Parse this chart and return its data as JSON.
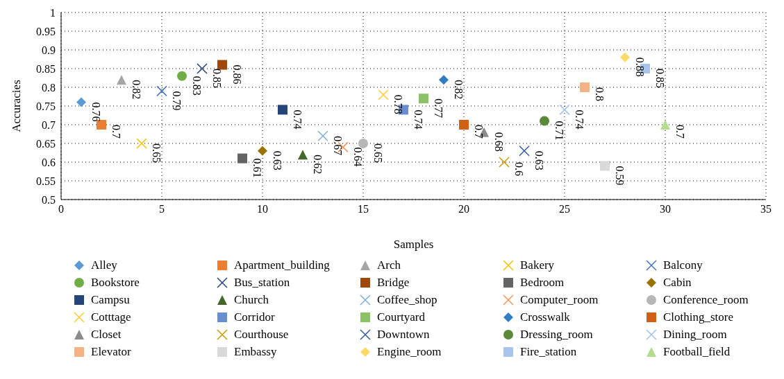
{
  "chart_data": {
    "type": "scatter",
    "xlabel": "Samples",
    "ylabel": "Accuracies",
    "xlim": [
      0,
      35
    ],
    "xticks": [
      0,
      5,
      10,
      15,
      20,
      25,
      30,
      35
    ],
    "ylim": [
      0.5,
      1
    ],
    "yticks": [
      0.5,
      0.55,
      0.6,
      0.65,
      0.7,
      0.75,
      0.8,
      0.85,
      0.9,
      0.95,
      1
    ],
    "grid": true,
    "legend": "bottom",
    "data_labels": true,
    "series": [
      {
        "name": "Alley",
        "color": "#5b9bd5",
        "marker": "diamond",
        "x": [
          1
        ],
        "values": [
          0.76
        ]
      },
      {
        "name": "Apartment_building",
        "color": "#ed7d31",
        "marker": "square",
        "x": [
          2
        ],
        "values": [
          0.7
        ]
      },
      {
        "name": "Arch",
        "color": "#a5a5a5",
        "marker": "triangle",
        "x": [
          3
        ],
        "values": [
          0.82
        ]
      },
      {
        "name": "Bakery",
        "color": "#ffc000",
        "marker": "cross",
        "x": [
          4
        ],
        "values": [
          0.65
        ]
      },
      {
        "name": "Balcony",
        "color": "#4472c4",
        "marker": "cross",
        "x": [
          5
        ],
        "values": [
          0.79
        ]
      },
      {
        "name": "Bookstore",
        "color": "#70ad47",
        "marker": "circle",
        "x": [
          6
        ],
        "values": [
          0.83
        ]
      },
      {
        "name": "Bus_station",
        "color": "#264478",
        "marker": "cross",
        "x": [
          7
        ],
        "values": [
          0.85
        ]
      },
      {
        "name": "Bridge",
        "color": "#9e480e",
        "marker": "square",
        "x": [
          8
        ],
        "values": [
          0.86
        ]
      },
      {
        "name": "Bedroom",
        "color": "#636363",
        "marker": "square",
        "x": [
          9
        ],
        "values": [
          0.61
        ]
      },
      {
        "name": "Cabin",
        "color": "#997300",
        "marker": "diamond",
        "x": [
          10
        ],
        "values": [
          0.63
        ]
      },
      {
        "name": "Campsu",
        "color": "#264478",
        "marker": "square",
        "x": [
          11
        ],
        "values": [
          0.74
        ]
      },
      {
        "name": "Church",
        "color": "#43682b",
        "marker": "triangle",
        "x": [
          12
        ],
        "values": [
          0.62
        ]
      },
      {
        "name": "Coffee_shop",
        "color": "#7cafdd",
        "marker": "cross",
        "x": [
          13
        ],
        "values": [
          0.67
        ]
      },
      {
        "name": "Computer_room",
        "color": "#f1975a",
        "marker": "cross",
        "x": [
          14
        ],
        "values": [
          0.64
        ]
      },
      {
        "name": "Conference_room",
        "color": "#b7b7b7",
        "marker": "circle",
        "x": [
          15
        ],
        "values": [
          0.65
        ]
      },
      {
        "name": "Cotttage",
        "color": "#ffcd33",
        "marker": "cross",
        "x": [
          16
        ],
        "values": [
          0.78
        ]
      },
      {
        "name": "Corridor",
        "color": "#698ed0",
        "marker": "square",
        "x": [
          17
        ],
        "values": [
          0.74
        ]
      },
      {
        "name": "Courtyard",
        "color": "#8cc168",
        "marker": "square",
        "x": [
          18
        ],
        "values": [
          0.77
        ]
      },
      {
        "name": "Crosswalk",
        "color": "#327dc2",
        "marker": "diamond",
        "x": [
          19
        ],
        "values": [
          0.82
        ]
      },
      {
        "name": "Clothing_store",
        "color": "#d26012",
        "marker": "square",
        "x": [
          20
        ],
        "values": [
          0.7
        ]
      },
      {
        "name": "Closet",
        "color": "#8b8b8b",
        "marker": "triangle",
        "x": [
          21
        ],
        "values": [
          0.68
        ]
      },
      {
        "name": "Courthouse",
        "color": "#cc9a00",
        "marker": "cross",
        "x": [
          22
        ],
        "values": [
          0.6
        ]
      },
      {
        "name": "Downtown",
        "color": "#335aa1",
        "marker": "cross",
        "x": [
          23
        ],
        "values": [
          0.63
        ]
      },
      {
        "name": "Dressing_room",
        "color": "#5a8a39",
        "marker": "circle",
        "x": [
          24
        ],
        "values": [
          0.71
        ]
      },
      {
        "name": "Dining_room",
        "color": "#a3c2eb",
        "marker": "cross",
        "x": [
          25
        ],
        "values": [
          0.74
        ]
      },
      {
        "name": "Elevator",
        "color": "#f4b183",
        "marker": "square",
        "x": [
          26
        ],
        "values": [
          0.8
        ]
      },
      {
        "name": "Embassy",
        "color": "#d9d9d9",
        "marker": "square",
        "x": [
          27
        ],
        "values": [
          0.59
        ]
      },
      {
        "name": "Engine_room",
        "color": "#ffd966",
        "marker": "diamond",
        "x": [
          28
        ],
        "values": [
          0.88
        ]
      },
      {
        "name": "Fire_station",
        "color": "#a9c4eb",
        "marker": "square",
        "x": [
          29
        ],
        "values": [
          0.85
        ]
      },
      {
        "name": "Football_field",
        "color": "#b4dc8c",
        "marker": "triangle",
        "x": [
          30
        ],
        "values": [
          0.7
        ]
      }
    ]
  }
}
